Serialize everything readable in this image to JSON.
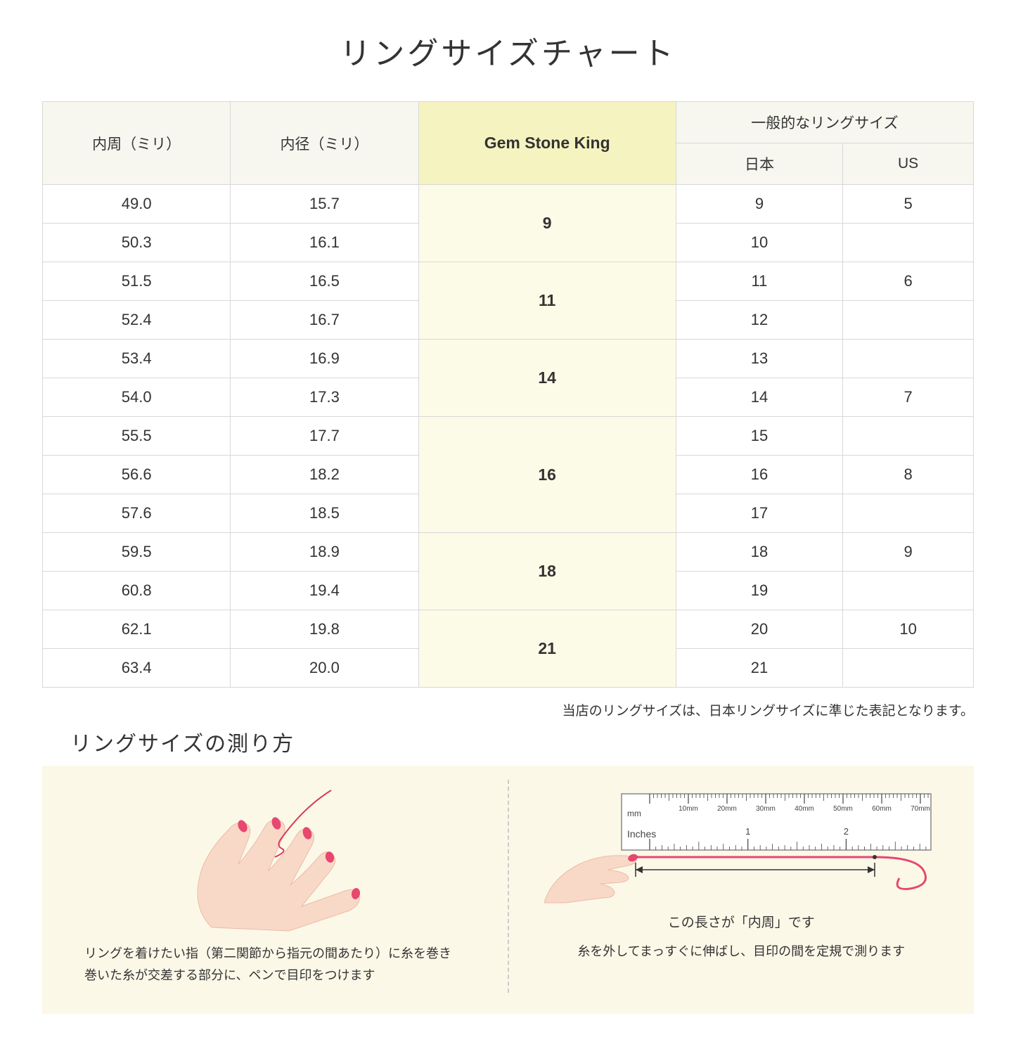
{
  "title": "リングサイズチャート",
  "headers": {
    "circumference": "内周（ミリ）",
    "diameter": "内径（ミリ）",
    "gsk": "Gem Stone King",
    "common": "一般的なリングサイズ",
    "japan": "日本",
    "us": "US"
  },
  "groups": [
    {
      "gsk": "9",
      "rows": [
        {
          "c": "49.0",
          "d": "15.7",
          "jp": "9",
          "us": "5"
        },
        {
          "c": "50.3",
          "d": "16.1",
          "jp": "10",
          "us": ""
        }
      ]
    },
    {
      "gsk": "11",
      "rows": [
        {
          "c": "51.5",
          "d": "16.5",
          "jp": "11",
          "us": "6"
        },
        {
          "c": "52.4",
          "d": "16.7",
          "jp": "12",
          "us": ""
        }
      ]
    },
    {
      "gsk": "14",
      "rows": [
        {
          "c": "53.4",
          "d": "16.9",
          "jp": "13",
          "us": ""
        },
        {
          "c": "54.0",
          "d": "17.3",
          "jp": "14",
          "us": "7"
        }
      ]
    },
    {
      "gsk": "16",
      "rows": [
        {
          "c": "55.5",
          "d": "17.7",
          "jp": "15",
          "us": ""
        },
        {
          "c": "56.6",
          "d": "18.2",
          "jp": "16",
          "us": "8"
        },
        {
          "c": "57.6",
          "d": "18.5",
          "jp": "17",
          "us": ""
        }
      ]
    },
    {
      "gsk": "18",
      "rows": [
        {
          "c": "59.5",
          "d": "18.9",
          "jp": "18",
          "us": "9"
        },
        {
          "c": "60.8",
          "d": "19.4",
          "jp": "19",
          "us": ""
        }
      ]
    },
    {
      "gsk": "21",
      "rows": [
        {
          "c": "62.1",
          "d": "19.8",
          "jp": "20",
          "us": "10"
        },
        {
          "c": "63.4",
          "d": "20.0",
          "jp": "21",
          "us": ""
        }
      ]
    }
  ],
  "note": "当店のリングサイズは、日本リングサイズに準じた表記となります。",
  "subtitle": "リングサイズの測り方",
  "howto": {
    "left_caption_1": "リングを着けたい指（第二関節から指元の間あたり）に糸を巻き",
    "left_caption_2": "巻いた糸が交差する部分に、ペンで目印をつけます",
    "arrow_label": "この長さが「内周」です",
    "right_caption": "糸を外してまっすぐに伸ばし、目印の間を定規で測ります"
  },
  "ruler": {
    "mm_label": "mm",
    "inches_label": "Inches",
    "mm_ticks": [
      "10mm",
      "20mm",
      "30mm",
      "40mm",
      "50mm",
      "60mm",
      "70mm"
    ]
  },
  "colors": {
    "header_bg": "#f7f7f0",
    "gsk_header_bg": "#f5f3c0",
    "gsk_cell_bg": "#fcfbe8",
    "border": "#d8d8d8",
    "howto_bg": "#fbf8e8",
    "skin": "#f8d9c8",
    "skin_shadow": "#edbba4",
    "nail": "#e8476f",
    "thread": "#d93a5a"
  }
}
